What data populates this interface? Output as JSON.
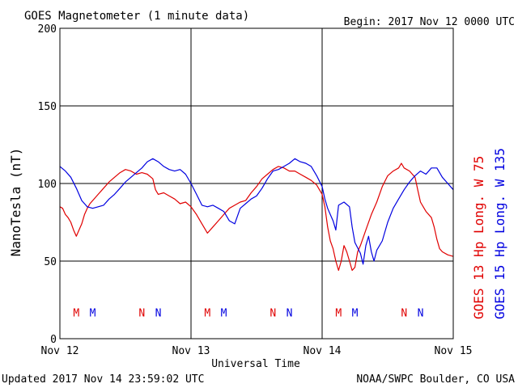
{
  "header": {
    "title": "GOES Magnetometer (1 minute data)",
    "begin": "Begin:  2017 Nov 12 0000 UTC"
  },
  "footer": {
    "updated": "Updated 2017 Nov 14 23:59:02 UTC",
    "source": "NOAA/SWPC Boulder, CO USA"
  },
  "colors": {
    "goes13": "#e00000",
    "goes15": "#0000e0",
    "axis": "#000000"
  },
  "chart_data": {
    "type": "line",
    "ylabel": "NanoTesla (nT)",
    "xlabel": "Universal Time",
    "ylim": [
      0,
      200
    ],
    "xlim": [
      0,
      72
    ],
    "grid": true,
    "yticks": [
      0,
      50,
      100,
      150,
      200
    ],
    "ytick_labels": [
      "0",
      "50",
      "100",
      "150",
      "200"
    ],
    "xticks": [
      0,
      24,
      48,
      72
    ],
    "xtick_labels": [
      "Nov 12",
      "Nov 13",
      "Nov 14",
      "Nov 15"
    ],
    "series": [
      {
        "name": "GOES 13 Hp  Long. W 75",
        "color": "#e00000",
        "points": [
          [
            0,
            85
          ],
          [
            0.5,
            84
          ],
          [
            1,
            80
          ],
          [
            1.5,
            78
          ],
          [
            2,
            75
          ],
          [
            2.5,
            70
          ],
          [
            3,
            66
          ],
          [
            3.5,
            70
          ],
          [
            4,
            74
          ],
          [
            4.5,
            80
          ],
          [
            5,
            84
          ],
          [
            5.5,
            87
          ],
          [
            6,
            89
          ],
          [
            7,
            93
          ],
          [
            8,
            97
          ],
          [
            9,
            101
          ],
          [
            10,
            104
          ],
          [
            11,
            107
          ],
          [
            12,
            109
          ],
          [
            13,
            108
          ],
          [
            14,
            106
          ],
          [
            15,
            107
          ],
          [
            16,
            106
          ],
          [
            17,
            103
          ],
          [
            17.5,
            96
          ],
          [
            18,
            93
          ],
          [
            19,
            94
          ],
          [
            20,
            92
          ],
          [
            21,
            90
          ],
          [
            22,
            87
          ],
          [
            23,
            88
          ],
          [
            24,
            85
          ],
          [
            25,
            80
          ],
          [
            26,
            74
          ],
          [
            27,
            68
          ],
          [
            28,
            72
          ],
          [
            29,
            76
          ],
          [
            30,
            80
          ],
          [
            31,
            84
          ],
          [
            32,
            86
          ],
          [
            33,
            88
          ],
          [
            34,
            89
          ],
          [
            35,
            94
          ],
          [
            36,
            98
          ],
          [
            37,
            103
          ],
          [
            38,
            106
          ],
          [
            39,
            109
          ],
          [
            40,
            111
          ],
          [
            41,
            110
          ],
          [
            42,
            108
          ],
          [
            43,
            108
          ],
          [
            44,
            106
          ],
          [
            45,
            104
          ],
          [
            46,
            102
          ],
          [
            47,
            99
          ],
          [
            48,
            93
          ],
          [
            48.5,
            85
          ],
          [
            49,
            72
          ],
          [
            49.5,
            63
          ],
          [
            50,
            58
          ],
          [
            50.5,
            50
          ],
          [
            51,
            44
          ],
          [
            51.5,
            50
          ],
          [
            52,
            60
          ],
          [
            52.5,
            56
          ],
          [
            53,
            50
          ],
          [
            53.5,
            44
          ],
          [
            54,
            46
          ],
          [
            54.5,
            56
          ],
          [
            55,
            60
          ],
          [
            56,
            70
          ],
          [
            57,
            80
          ],
          [
            58,
            88
          ],
          [
            59,
            98
          ],
          [
            60,
            105
          ],
          [
            61,
            108
          ],
          [
            62,
            110
          ],
          [
            62.5,
            113
          ],
          [
            63,
            110
          ],
          [
            64,
            108
          ],
          [
            65,
            104
          ],
          [
            65.5,
            96
          ],
          [
            66,
            88
          ],
          [
            67,
            82
          ],
          [
            68,
            78
          ],
          [
            68.5,
            72
          ],
          [
            69,
            64
          ],
          [
            69.5,
            58
          ],
          [
            70,
            56
          ],
          [
            71,
            54
          ],
          [
            72,
            53
          ]
        ]
      },
      {
        "name": "GOES 15 Hp  Long. W 135",
        "color": "#0000e0",
        "points": [
          [
            0,
            111
          ],
          [
            1,
            108
          ],
          [
            2,
            104
          ],
          [
            3,
            97
          ],
          [
            4,
            89
          ],
          [
            5,
            85
          ],
          [
            6,
            84
          ],
          [
            7,
            85
          ],
          [
            8,
            86
          ],
          [
            9,
            90
          ],
          [
            10,
            93
          ],
          [
            11,
            97
          ],
          [
            12,
            101
          ],
          [
            13,
            104
          ],
          [
            14,
            107
          ],
          [
            15,
            110
          ],
          [
            16,
            114
          ],
          [
            17,
            116
          ],
          [
            18,
            114
          ],
          [
            19,
            111
          ],
          [
            20,
            109
          ],
          [
            21,
            108
          ],
          [
            22,
            109
          ],
          [
            23,
            106
          ],
          [
            24,
            100
          ],
          [
            25,
            93
          ],
          [
            26,
            86
          ],
          [
            27,
            85
          ],
          [
            28,
            86
          ],
          [
            29,
            84
          ],
          [
            30,
            82
          ],
          [
            31,
            76
          ],
          [
            32,
            74
          ],
          [
            33,
            84
          ],
          [
            34,
            87
          ],
          [
            35,
            90
          ],
          [
            36,
            92
          ],
          [
            37,
            97
          ],
          [
            38,
            103
          ],
          [
            39,
            108
          ],
          [
            40,
            109
          ],
          [
            41,
            111
          ],
          [
            42,
            113
          ],
          [
            43,
            116
          ],
          [
            44,
            114
          ],
          [
            45,
            113
          ],
          [
            46,
            111
          ],
          [
            47,
            105
          ],
          [
            48,
            98
          ],
          [
            48.5,
            90
          ],
          [
            49,
            84
          ],
          [
            49.5,
            80
          ],
          [
            50,
            76
          ],
          [
            50.5,
            70
          ],
          [
            51,
            86
          ],
          [
            52,
            88
          ],
          [
            53,
            85
          ],
          [
            53.5,
            72
          ],
          [
            54,
            62
          ],
          [
            55,
            55
          ],
          [
            55.5,
            48
          ],
          [
            56,
            60
          ],
          [
            56.5,
            66
          ],
          [
            57,
            56
          ],
          [
            57.5,
            50
          ],
          [
            58,
            57
          ],
          [
            59,
            63
          ],
          [
            60,
            75
          ],
          [
            61,
            84
          ],
          [
            62,
            90
          ],
          [
            63,
            96
          ],
          [
            64,
            101
          ],
          [
            65,
            105
          ],
          [
            66,
            108
          ],
          [
            67,
            106
          ],
          [
            68,
            110
          ],
          [
            69,
            110
          ],
          [
            70,
            104
          ],
          [
            71,
            100
          ],
          [
            72,
            96
          ]
        ]
      }
    ],
    "markers": [
      {
        "label": "M",
        "x": 3,
        "y": 17,
        "color": "#e00000"
      },
      {
        "label": "M",
        "x": 6,
        "y": 17,
        "color": "#0000e0"
      },
      {
        "label": "N",
        "x": 15,
        "y": 17,
        "color": "#e00000"
      },
      {
        "label": "N",
        "x": 18,
        "y": 17,
        "color": "#0000e0"
      },
      {
        "label": "M",
        "x": 27,
        "y": 17,
        "color": "#e00000"
      },
      {
        "label": "M",
        "x": 30,
        "y": 17,
        "color": "#0000e0"
      },
      {
        "label": "N",
        "x": 39,
        "y": 17,
        "color": "#e00000"
      },
      {
        "label": "N",
        "x": 42,
        "y": 17,
        "color": "#0000e0"
      },
      {
        "label": "M",
        "x": 51,
        "y": 17,
        "color": "#e00000"
      },
      {
        "label": "M",
        "x": 54,
        "y": 17,
        "color": "#0000e0"
      },
      {
        "label": "N",
        "x": 63,
        "y": 17,
        "color": "#e00000"
      },
      {
        "label": "N",
        "x": 66,
        "y": 17,
        "color": "#0000e0"
      }
    ]
  }
}
